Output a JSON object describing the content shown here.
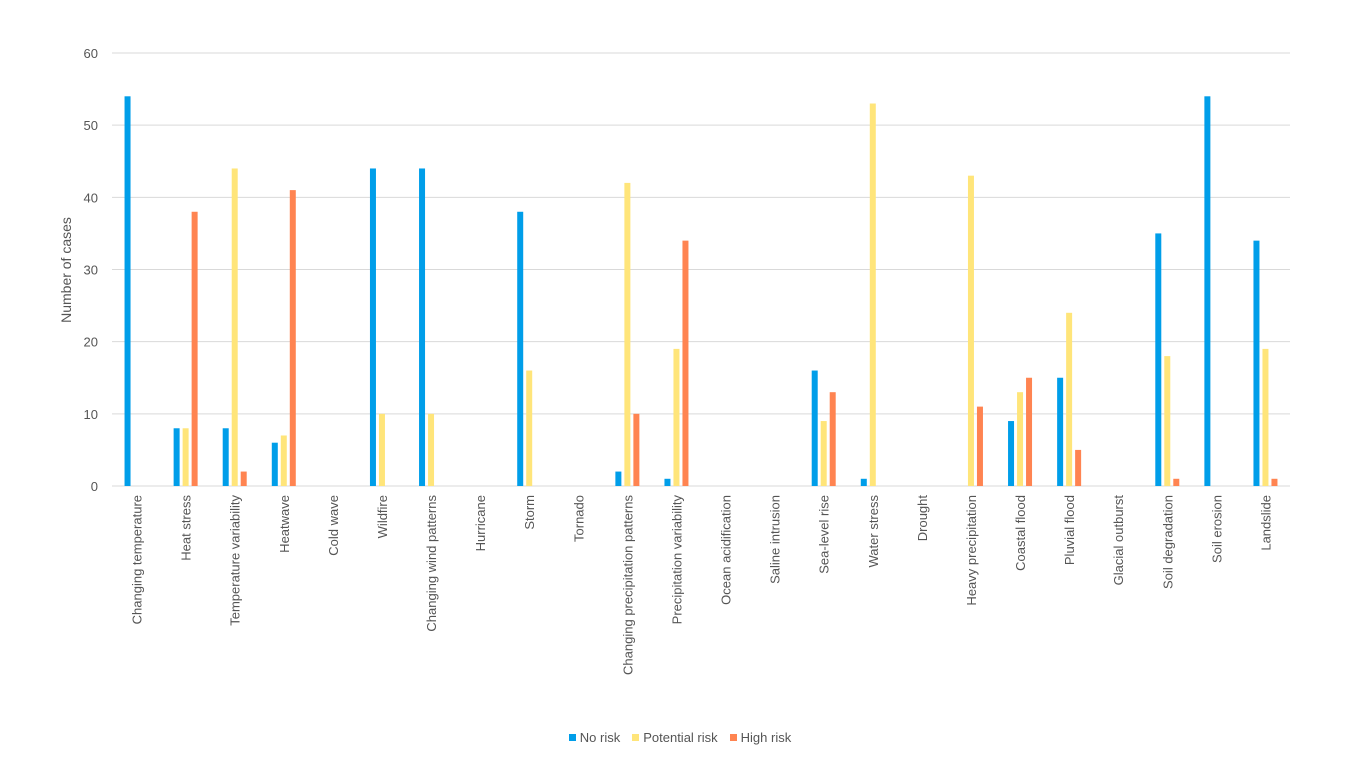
{
  "chart_data": {
    "type": "bar",
    "title": "",
    "xlabel": "",
    "ylabel": "Number of cases",
    "ylim": [
      0,
      60
    ],
    "yticks": [
      0,
      10,
      20,
      30,
      40,
      50,
      60
    ],
    "grid": true,
    "legend_position": "bottom",
    "categories": [
      "Changing temperature",
      "Heat stress",
      "Temperature variability",
      "Heatwave",
      "Cold wave",
      "Wildfire",
      "Changing wind patterns",
      "Hurricane",
      "Storm",
      "Tornado",
      "Changing precipitation patterns",
      "Precipitation variability",
      "Ocean acidification",
      "Saline intrusion",
      "Sea-level rise",
      "Water stress",
      "Drought",
      "Heavy precipitation",
      "Coastal flood",
      "Pluvial flood",
      "Glacial outburst",
      "Soil degradation",
      "Soil erosion",
      "Landslide"
    ],
    "series": [
      {
        "name": "No risk",
        "color": "#009EE9",
        "values": [
          54,
          8,
          8,
          6,
          0,
          44,
          44,
          0,
          38,
          0,
          2,
          1,
          0,
          0,
          16,
          1,
          0,
          0,
          9,
          15,
          0,
          35,
          54,
          34
        ]
      },
      {
        "name": "Potential risk",
        "color": "#FFE57A",
        "values": [
          0,
          8,
          44,
          7,
          0,
          10,
          10,
          0,
          16,
          0,
          42,
          19,
          0,
          0,
          9,
          53,
          0,
          43,
          13,
          24,
          0,
          18,
          0,
          19
        ]
      },
      {
        "name": "High risk",
        "color": "#FF8451",
        "values": [
          0,
          38,
          2,
          41,
          0,
          0,
          0,
          0,
          0,
          0,
          10,
          34,
          0,
          0,
          13,
          0,
          0,
          11,
          15,
          5,
          0,
          1,
          0,
          1
        ]
      }
    ]
  }
}
